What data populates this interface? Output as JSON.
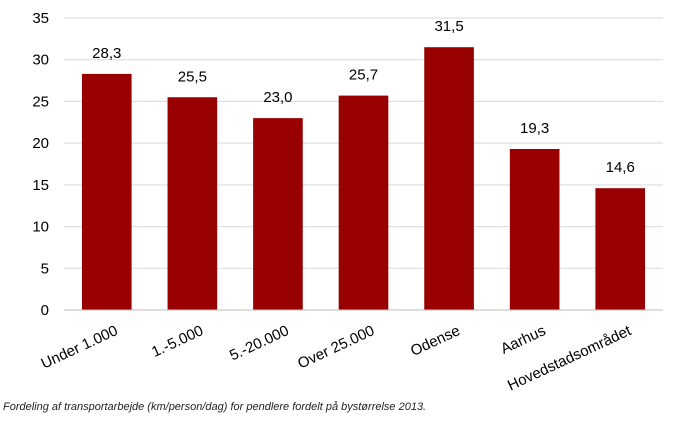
{
  "caption": "Fordeling af transportarbejde (km/person/dag) for pendlere fordelt på bystørrelse 2013.",
  "chart_data": {
    "type": "bar",
    "categories": [
      "Under 1.000",
      "1.-5.000",
      "5.-20.000",
      "Over 25.000",
      "Odense",
      "Aarhus",
      "Hovedstadsområdet"
    ],
    "values": [
      28.3,
      25.5,
      23.0,
      25.7,
      31.5,
      19.3,
      14.6
    ],
    "value_labels": [
      "28,3",
      "25,5",
      "23,0",
      "25,7",
      "31,5",
      "19,3",
      "14,6"
    ],
    "ylim": [
      0,
      35
    ],
    "yticks": [
      0,
      5,
      10,
      15,
      20,
      25,
      30,
      35
    ],
    "grid": true,
    "bar_color": "#990000",
    "grid_color": "#d9d9d9",
    "xlabel_rotation": "rotated -25 degrees"
  }
}
